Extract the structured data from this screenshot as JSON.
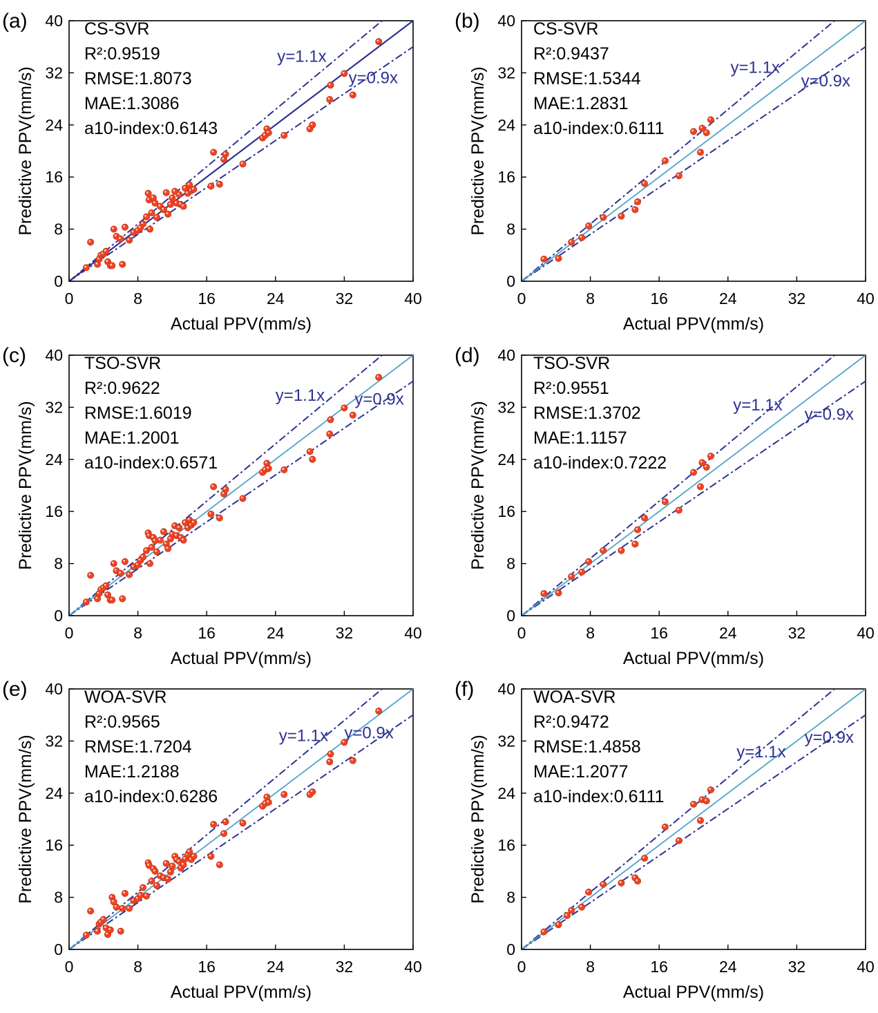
{
  "colors": {
    "axis": "#000000",
    "dashdot": "#2e3192",
    "fit_line_dark": "#2e3192",
    "fit_line_light": "#4fa3c9",
    "point_fill": "#ef4423",
    "point_edge": "#c2351c",
    "line_label": "#2e3192"
  },
  "chart_data": [
    {
      "type": "scatter",
      "panel_label": "(a)",
      "model": "CS-SVR",
      "stats": [
        "R²:0.9519",
        "RMSE:1.8073",
        "MAE:1.3086",
        "a10-index:0.6143"
      ],
      "xlabel": "Actual PPV(mm/s)",
      "ylabel": "Predictive PPV(mm/s)",
      "xlim": [
        0,
        40
      ],
      "ylim": [
        0,
        40
      ],
      "xticks": [
        "0",
        "8",
        "16",
        "24",
        "32",
        "40"
      ],
      "yticks": [
        "0",
        "8",
        "16",
        "24",
        "32",
        "40"
      ],
      "line_labels": [
        "y=1.1x",
        "y=0.9x"
      ],
      "fit_line_style": "dark",
      "points": [
        [
          2.0,
          2.1
        ],
        [
          2.5,
          6.0
        ],
        [
          3.3,
          2.6
        ],
        [
          3.5,
          3.4
        ],
        [
          3.7,
          4.0
        ],
        [
          4.0,
          4.2
        ],
        [
          4.3,
          4.6
        ],
        [
          4.5,
          3.0
        ],
        [
          4.8,
          2.4
        ],
        [
          5.0,
          2.4
        ],
        [
          5.2,
          8.0
        ],
        [
          5.5,
          6.9
        ],
        [
          6.0,
          6.5
        ],
        [
          6.2,
          2.6
        ],
        [
          6.5,
          8.3
        ],
        [
          7.0,
          6.3
        ],
        [
          7.5,
          7.5
        ],
        [
          8.0,
          7.8
        ],
        [
          8.3,
          8.2
        ],
        [
          8.6,
          8.8
        ],
        [
          9.0,
          9.9
        ],
        [
          9.2,
          13.5
        ],
        [
          9.3,
          12.5
        ],
        [
          9.4,
          8.0
        ],
        [
          9.6,
          10.5
        ],
        [
          9.8,
          12.8
        ],
        [
          10.0,
          12.0
        ],
        [
          10.2,
          9.8
        ],
        [
          10.6,
          11.5
        ],
        [
          11.0,
          11.0
        ],
        [
          11.3,
          13.6
        ],
        [
          11.5,
          10.3
        ],
        [
          11.8,
          11.8
        ],
        [
          12.0,
          12.8
        ],
        [
          12.3,
          13.8
        ],
        [
          12.5,
          12.0
        ],
        [
          12.8,
          13.3
        ],
        [
          13.0,
          11.8
        ],
        [
          13.3,
          11.5
        ],
        [
          13.5,
          14.3
        ],
        [
          13.8,
          13.5
        ],
        [
          14.0,
          14.8
        ],
        [
          14.2,
          13.9
        ],
        [
          14.5,
          14.1
        ],
        [
          16.5,
          14.6
        ],
        [
          16.8,
          19.8
        ],
        [
          17.5,
          14.9
        ],
        [
          18.0,
          18.7
        ],
        [
          18.2,
          19.5
        ],
        [
          20.2,
          18.0
        ],
        [
          22.5,
          22.0
        ],
        [
          22.8,
          22.4
        ],
        [
          23.0,
          23.4
        ],
        [
          23.2,
          22.8
        ],
        [
          25.0,
          22.4
        ],
        [
          28.0,
          23.4
        ],
        [
          28.3,
          24.0
        ],
        [
          30.3,
          27.9
        ],
        [
          30.4,
          30.1
        ],
        [
          32.0,
          31.9
        ],
        [
          33.0,
          28.6
        ],
        [
          36.0,
          36.8
        ]
      ]
    },
    {
      "type": "scatter",
      "panel_label": "(b)",
      "model": "CS-SVR",
      "stats": [
        "R²:0.9437",
        "RMSE:1.5344",
        "MAE:1.2831",
        "a10-index:0.6111"
      ],
      "xlabel": "Actual PPV(mm/s)",
      "ylabel": "Predictive PPV(mm/s)",
      "xlim": [
        0,
        40
      ],
      "ylim": [
        0,
        40
      ],
      "xticks": [
        "0",
        "8",
        "16",
        "24",
        "32",
        "40"
      ],
      "yticks": [
        "0",
        "8",
        "16",
        "24",
        "32",
        "40"
      ],
      "line_labels": [
        "y=1.1x",
        "y=0.9x"
      ],
      "fit_line_style": "light",
      "points": [
        [
          2.6,
          3.4
        ],
        [
          4.3,
          3.5
        ],
        [
          5.8,
          6.0
        ],
        [
          7.0,
          6.7
        ],
        [
          7.8,
          8.5
        ],
        [
          9.5,
          9.8
        ],
        [
          11.6,
          10.0
        ],
        [
          13.2,
          11.0
        ],
        [
          13.5,
          12.2
        ],
        [
          14.3,
          15.0
        ],
        [
          16.7,
          18.5
        ],
        [
          18.3,
          16.2
        ],
        [
          20.0,
          23.0
        ],
        [
          20.8,
          19.8
        ],
        [
          21.0,
          23.5
        ],
        [
          21.5,
          22.8
        ],
        [
          22.0,
          24.8
        ]
      ]
    },
    {
      "type": "scatter",
      "panel_label": "(c)",
      "model": "TSO-SVR",
      "stats": [
        "R²:0.9622",
        "RMSE:1.6019",
        "MAE:1.2001",
        "a10-index:0.6571"
      ],
      "xlabel": "Actual PPV(mm/s)",
      "ylabel": "Predictive PPV(mm/s)",
      "xlim": [
        0,
        40
      ],
      "ylim": [
        0,
        40
      ],
      "xticks": [
        "0",
        "8",
        "16",
        "24",
        "32",
        "40"
      ],
      "yticks": [
        "0",
        "8",
        "16",
        "24",
        "32",
        "40"
      ],
      "line_labels": [
        "y=1.1x",
        "y=0.9x"
      ],
      "fit_line_style": "light",
      "points": [
        [
          2.0,
          2.1
        ],
        [
          2.5,
          6.2
        ],
        [
          3.3,
          2.6
        ],
        [
          3.5,
          3.4
        ],
        [
          3.7,
          4.0
        ],
        [
          4.0,
          4.3
        ],
        [
          4.3,
          4.6
        ],
        [
          4.5,
          3.2
        ],
        [
          4.8,
          2.4
        ],
        [
          5.0,
          2.4
        ],
        [
          5.2,
          8.0
        ],
        [
          5.5,
          6.9
        ],
        [
          6.0,
          6.5
        ],
        [
          6.2,
          2.6
        ],
        [
          6.5,
          8.3
        ],
        [
          7.0,
          6.3
        ],
        [
          7.5,
          7.5
        ],
        [
          8.0,
          7.8
        ],
        [
          8.3,
          8.5
        ],
        [
          8.6,
          9.0
        ],
        [
          9.0,
          10.0
        ],
        [
          9.2,
          12.7
        ],
        [
          9.3,
          12.3
        ],
        [
          9.4,
          8.0
        ],
        [
          9.6,
          10.5
        ],
        [
          9.8,
          12.0
        ],
        [
          10.0,
          11.5
        ],
        [
          10.2,
          9.8
        ],
        [
          10.6,
          11.6
        ],
        [
          11.0,
          12.9
        ],
        [
          11.3,
          11.0
        ],
        [
          11.5,
          10.3
        ],
        [
          11.8,
          11.8
        ],
        [
          12.0,
          12.5
        ],
        [
          12.3,
          13.8
        ],
        [
          12.5,
          12.3
        ],
        [
          12.8,
          13.5
        ],
        [
          13.0,
          12.0
        ],
        [
          13.3,
          11.6
        ],
        [
          13.5,
          14.3
        ],
        [
          13.8,
          13.5
        ],
        [
          14.0,
          14.7
        ],
        [
          14.2,
          13.9
        ],
        [
          14.5,
          14.3
        ],
        [
          16.5,
          15.6
        ],
        [
          16.8,
          19.8
        ],
        [
          17.5,
          15.0
        ],
        [
          18.0,
          18.7
        ],
        [
          18.2,
          19.4
        ],
        [
          20.2,
          18.0
        ],
        [
          22.5,
          22.0
        ],
        [
          22.8,
          22.4
        ],
        [
          23.0,
          23.4
        ],
        [
          23.2,
          22.6
        ],
        [
          25.0,
          22.4
        ],
        [
          28.0,
          25.2
        ],
        [
          28.3,
          24.0
        ],
        [
          30.3,
          27.9
        ],
        [
          30.4,
          30.1
        ],
        [
          32.0,
          31.9
        ],
        [
          33.0,
          30.8
        ],
        [
          36.0,
          36.6
        ]
      ]
    },
    {
      "type": "scatter",
      "panel_label": "(d)",
      "model": "TSO-SVR",
      "stats": [
        "R²:0.9551",
        "RMSE:1.3702",
        "MAE:1.1157",
        "a10-index:0.7222"
      ],
      "xlabel": "Actual PPV(mm/s)",
      "ylabel": "Predictive PPV(mm/s)",
      "xlim": [
        0,
        40
      ],
      "ylim": [
        0,
        40
      ],
      "xticks": [
        "0",
        "8",
        "16",
        "24",
        "32",
        "40"
      ],
      "yticks": [
        "0",
        "8",
        "16",
        "24",
        "32",
        "40"
      ],
      "line_labels": [
        "y=1.1x",
        "y=0.9x"
      ],
      "fit_line_style": "light",
      "points": [
        [
          2.6,
          3.4
        ],
        [
          4.3,
          3.5
        ],
        [
          5.8,
          6.0
        ],
        [
          7.0,
          6.7
        ],
        [
          7.8,
          8.3
        ],
        [
          9.5,
          10.0
        ],
        [
          11.6,
          10.0
        ],
        [
          13.2,
          11.0
        ],
        [
          13.5,
          13.2
        ],
        [
          14.3,
          15.0
        ],
        [
          16.7,
          17.5
        ],
        [
          18.3,
          16.2
        ],
        [
          20.0,
          22.0
        ],
        [
          20.8,
          19.8
        ],
        [
          21.0,
          23.5
        ],
        [
          21.5,
          22.8
        ],
        [
          22.0,
          24.5
        ]
      ]
    },
    {
      "type": "scatter",
      "panel_label": "(e)",
      "model": "WOA-SVR",
      "stats": [
        "R²:0.9565",
        "RMSE:1.7204",
        "MAE:1.2188",
        "a10-index:0.6286"
      ],
      "xlabel": "Actual PPV(mm/s)",
      "ylabel": "Predictive PPV(mm/s)",
      "xlim": [
        0,
        40
      ],
      "ylim": [
        0,
        40
      ],
      "xticks": [
        "0",
        "8",
        "16",
        "24",
        "32",
        "40"
      ],
      "yticks": [
        "0",
        "8",
        "16",
        "24",
        "32",
        "40"
      ],
      "line_labels": [
        "y=1.1x",
        "y=0.9x"
      ],
      "fit_line_style": "light",
      "points": [
        [
          2.0,
          2.2
        ],
        [
          2.5,
          5.9
        ],
        [
          3.3,
          2.8
        ],
        [
          3.5,
          3.9
        ],
        [
          3.7,
          4.2
        ],
        [
          4.0,
          4.6
        ],
        [
          4.3,
          3.3
        ],
        [
          4.5,
          2.3
        ],
        [
          4.8,
          3.0
        ],
        [
          5.0,
          8.0
        ],
        [
          5.2,
          7.3
        ],
        [
          5.5,
          6.5
        ],
        [
          6.0,
          2.8
        ],
        [
          6.2,
          6.3
        ],
        [
          6.5,
          8.6
        ],
        [
          7.0,
          6.3
        ],
        [
          7.5,
          7.5
        ],
        [
          8.0,
          7.8
        ],
        [
          8.3,
          8.3
        ],
        [
          8.6,
          9.5
        ],
        [
          9.0,
          8.2
        ],
        [
          9.2,
          13.3
        ],
        [
          9.3,
          12.9
        ],
        [
          9.6,
          10.5
        ],
        [
          9.8,
          12.4
        ],
        [
          10.0,
          12.0
        ],
        [
          10.2,
          9.8
        ],
        [
          10.6,
          11.3
        ],
        [
          11.0,
          11.0
        ],
        [
          11.3,
          13.2
        ],
        [
          11.5,
          10.8
        ],
        [
          11.8,
          11.9
        ],
        [
          12.0,
          12.8
        ],
        [
          12.3,
          14.3
        ],
        [
          12.5,
          13.8
        ],
        [
          12.8,
          13.5
        ],
        [
          13.0,
          12.5
        ],
        [
          13.3,
          13.0
        ],
        [
          13.5,
          13.9
        ],
        [
          13.8,
          14.5
        ],
        [
          14.0,
          15.0
        ],
        [
          14.2,
          13.8
        ],
        [
          14.5,
          14.3
        ],
        [
          16.5,
          14.3
        ],
        [
          16.8,
          19.2
        ],
        [
          17.5,
          13.0
        ],
        [
          18.0,
          17.8
        ],
        [
          18.2,
          19.6
        ],
        [
          20.2,
          19.4
        ],
        [
          22.5,
          22.0
        ],
        [
          22.8,
          22.4
        ],
        [
          23.0,
          23.4
        ],
        [
          23.2,
          22.6
        ],
        [
          25.0,
          23.8
        ],
        [
          28.0,
          23.8
        ],
        [
          28.3,
          24.2
        ],
        [
          30.3,
          28.8
        ],
        [
          30.4,
          30.0
        ],
        [
          32.0,
          31.8
        ],
        [
          33.0,
          29.0
        ],
        [
          36.0,
          36.6
        ]
      ]
    },
    {
      "type": "scatter",
      "panel_label": "(f)",
      "model": "WOA-SVR",
      "stats": [
        "R²:0.9472",
        "RMSE:1.4858",
        "MAE:1.2077",
        "a10-index:0.6111"
      ],
      "xlabel": "Actual PPV(mm/s)",
      "ylabel": "Predictive PPV(mm/s)",
      "xlim": [
        0,
        40
      ],
      "ylim": [
        0,
        40
      ],
      "xticks": [
        "0",
        "8",
        "16",
        "24",
        "32",
        "40"
      ],
      "yticks": [
        "0",
        "8",
        "16",
        "24",
        "32",
        "40"
      ],
      "line_labels": [
        "y=1.1x",
        "y=0.9x"
      ],
      "fit_line_style": "light",
      "points": [
        [
          2.6,
          2.7
        ],
        [
          4.3,
          3.8
        ],
        [
          5.3,
          5.2
        ],
        [
          5.8,
          6.0
        ],
        [
          7.0,
          6.5
        ],
        [
          7.8,
          8.8
        ],
        [
          9.5,
          10.0
        ],
        [
          11.6,
          10.2
        ],
        [
          13.2,
          11.0
        ],
        [
          13.5,
          10.5
        ],
        [
          14.3,
          14.0
        ],
        [
          16.7,
          18.8
        ],
        [
          18.3,
          16.7
        ],
        [
          20.0,
          22.3
        ],
        [
          20.8,
          19.8
        ],
        [
          21.0,
          23.0
        ],
        [
          21.5,
          22.8
        ],
        [
          22.0,
          24.5
        ]
      ]
    }
  ]
}
